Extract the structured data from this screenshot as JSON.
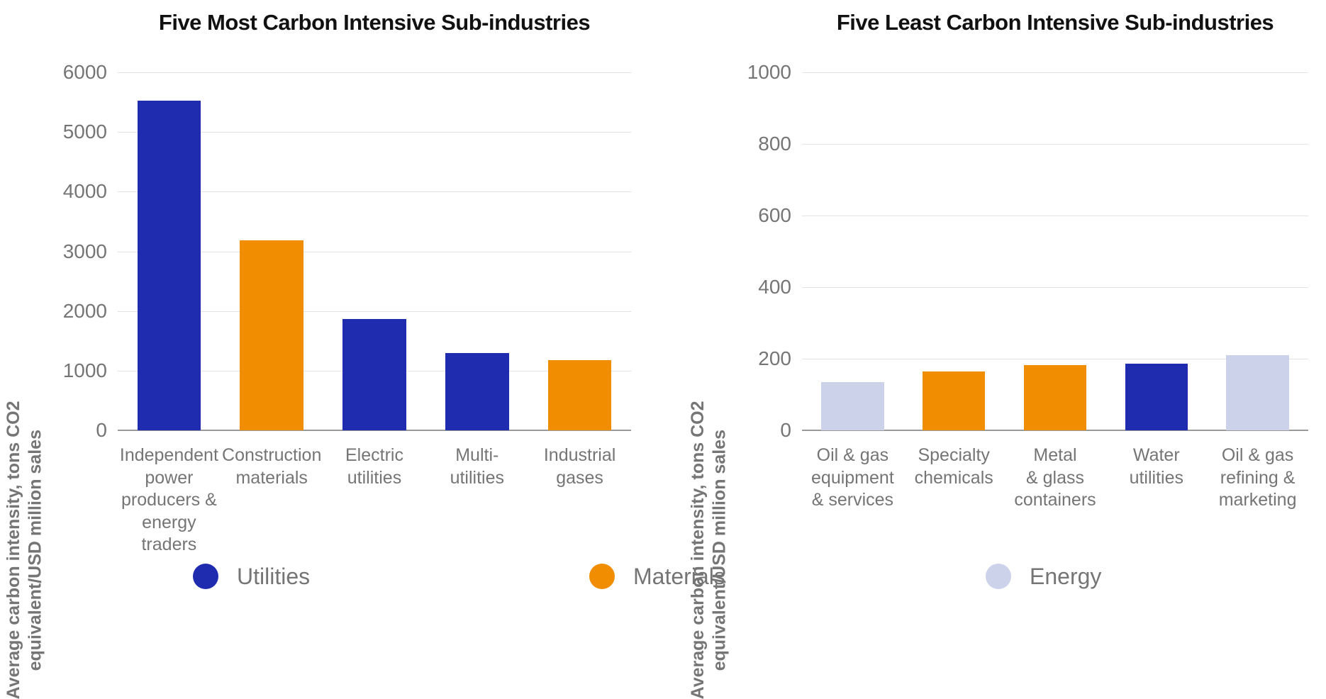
{
  "legend": {
    "position": "bottom",
    "items": [
      {
        "label": "Utilities",
        "color": "#1f2cb0"
      },
      {
        "label": "Materials",
        "color": "#f08d00"
      },
      {
        "label": "Energy",
        "color": "#cbd2ea"
      }
    ]
  },
  "chart_data": [
    {
      "type": "bar",
      "title": "Five Most Carbon Intensive Sub-industries",
      "xlabel": "",
      "ylabel": "Average carbon intensity, tons CO2 equivalent/USD million sales",
      "ylabel_lines": [
        "Average carbon intensity, tons CO2",
        "equivalent/USD million sales"
      ],
      "ylim": [
        0,
        6000
      ],
      "yticks": [
        0,
        1000,
        2000,
        3000,
        4000,
        5000,
        6000
      ],
      "grid": true,
      "categories": [
        "Independent power producers & energy traders",
        "Construction materials",
        "Electric utilities",
        "Multi-utilities",
        "Industrial gases"
      ],
      "category_lines": [
        [
          "Independent",
          "power",
          "producers &",
          "energy traders"
        ],
        [
          "Construction",
          "materials"
        ],
        [
          "Electric",
          "utilities"
        ],
        [
          "Multi-",
          "utilities"
        ],
        [
          "Industrial",
          "gases"
        ]
      ],
      "values": [
        5520,
        3190,
        1860,
        1290,
        1180
      ],
      "groups": [
        "Utilities",
        "Materials",
        "Utilities",
        "Utilities",
        "Materials"
      ],
      "bar_colors": [
        "#1f2cb0",
        "#f08d00",
        "#1f2cb0",
        "#1f2cb0",
        "#f08d00"
      ]
    },
    {
      "type": "bar",
      "title": "Five Least Carbon Intensive Sub-industries",
      "xlabel": "",
      "ylabel": "Average carbon intensity, tons CO2 equivalent/USD million sales",
      "ylabel_lines": [
        "Average carbon intensity, tons CO2",
        "equivalent/USD million sales"
      ],
      "ylim": [
        0,
        1000
      ],
      "yticks": [
        0,
        200,
        400,
        600,
        800,
        1000
      ],
      "grid": true,
      "categories": [
        "Oil & gas equipment & services",
        "Specialty chemicals",
        "Metal & glass containers",
        "Water utilities",
        "Oil & gas refining & marketing"
      ],
      "category_lines": [
        [
          "Oil & gas",
          "equipment",
          "& services"
        ],
        [
          "Specialty",
          "chemicals"
        ],
        [
          "Metal",
          "& glass",
          "containers"
        ],
        [
          "Water",
          "utilities"
        ],
        [
          "Oil & gas",
          "refining &",
          "marketing"
        ]
      ],
      "values": [
        134,
        165,
        183,
        187,
        210
      ],
      "groups": [
        "Energy",
        "Materials",
        "Materials",
        "Utilities",
        "Energy"
      ],
      "bar_colors": [
        "#cbd2ea",
        "#f08d00",
        "#f08d00",
        "#1f2cb0",
        "#cbd2ea"
      ]
    }
  ]
}
